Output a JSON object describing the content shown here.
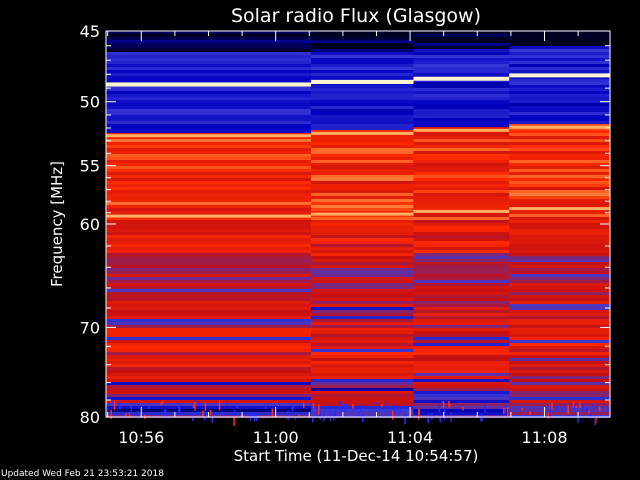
{
  "chart_data": {
    "type": "heatmap",
    "title": "Solar radio Flux (Glasgow)",
    "xlabel": "Start Time (11-Dec-14 10:54:57)",
    "ylabel": "Frequency [MHz]",
    "x_tick_labels": [
      "10:56",
      "11:00",
      "11:04",
      "11:08"
    ],
    "x_tick_minutes": [
      56,
      60,
      64,
      68
    ],
    "x_range_minutes": [
      54.95,
      69.95
    ],
    "y_tick_values": [
      45,
      50,
      55,
      60,
      70,
      80
    ],
    "y_range": [
      45,
      80
    ],
    "y_scale": "log",
    "grid": false,
    "colormap": [
      "#000020",
      "#0000c0",
      "#3a3ad8",
      "#c81010",
      "#ff2a00",
      "#ffd070",
      "#ffffff"
    ],
    "segment_boundaries_minutes": [
      61.05,
      64.1,
      66.95
    ],
    "bright_lines_mhz": [
      {
        "freq": 48.7,
        "intensity": "white"
      },
      {
        "freq": 52.6,
        "intensity": "orange"
      },
      {
        "freq": 59.3,
        "intensity": "orange"
      }
    ]
  },
  "footer_text": "Updated Wed Feb 21 23:53:21 2018"
}
